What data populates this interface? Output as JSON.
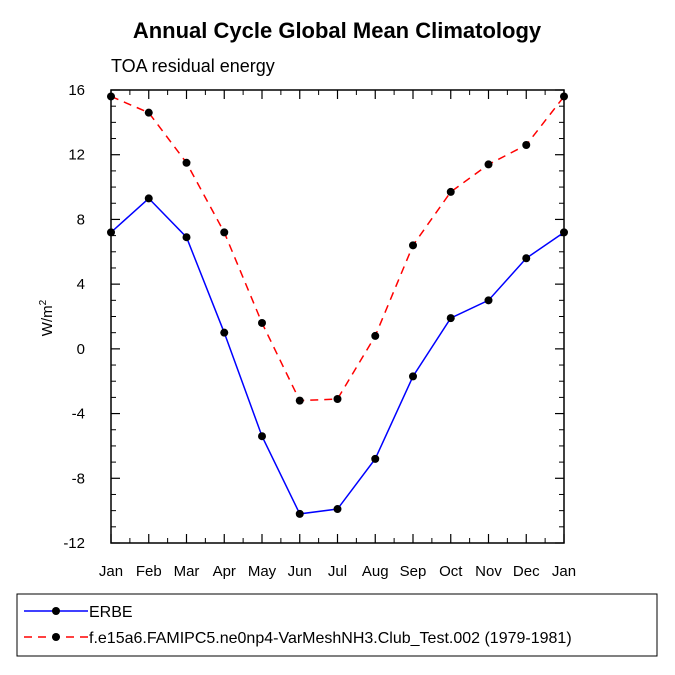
{
  "chart_data": {
    "type": "line",
    "title": "Annual Cycle Global Mean Climatology",
    "subtitle": "TOA residual energy",
    "ylabel": "W/m",
    "ylabel_sup": "2",
    "xlabel": "",
    "categories": [
      "Jan",
      "Feb",
      "Mar",
      "Apr",
      "May",
      "Jun",
      "Jul",
      "Aug",
      "Sep",
      "Oct",
      "Nov",
      "Dec",
      "Jan"
    ],
    "ylim": [
      -12,
      16
    ],
    "yticks": [
      -12,
      -8,
      -4,
      0,
      4,
      8,
      12,
      16
    ],
    "ytick_labels": [
      "-12",
      "-8",
      "-4",
      "0",
      "4",
      "8",
      "12",
      "16"
    ],
    "grid": false,
    "legend_position": "bottom",
    "series": [
      {
        "name": "ERBE",
        "color": "#0000ff",
        "dash": "solid",
        "marker": "circle",
        "values": [
          7.2,
          9.3,
          6.9,
          1.0,
          -5.4,
          -10.2,
          -9.9,
          -6.8,
          -1.7,
          1.9,
          3.0,
          5.6,
          7.2
        ]
      },
      {
        "name": "f.e15a6.FAMIPC5.ne0np4-VarMeshNH3.Club_Test.002 (1979-1981)",
        "color": "#ff0000",
        "dash": "dashed",
        "marker": "circle",
        "values": [
          15.6,
          14.6,
          11.5,
          7.2,
          1.6,
          -3.2,
          -3.1,
          0.8,
          6.4,
          9.7,
          11.4,
          12.6,
          15.6
        ]
      }
    ]
  }
}
